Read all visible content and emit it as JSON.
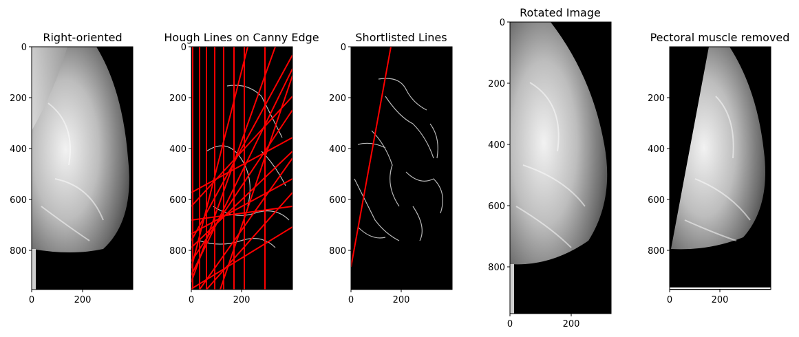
{
  "figure": {
    "panels": [
      {
        "id": "right-oriented",
        "title": "Right-oriented",
        "content": "mammogram",
        "y_ticks": [
          "0",
          "200",
          "400",
          "600",
          "800"
        ],
        "x_ticks": [
          "0",
          "200"
        ]
      },
      {
        "id": "hough-lines",
        "title": "Hough Lines on Canny Edge",
        "content": "edges-with-red-lines",
        "y_ticks": [
          "0",
          "200",
          "400",
          "600",
          "800"
        ],
        "x_ticks": [
          "0",
          "200"
        ]
      },
      {
        "id": "shortlisted-lines",
        "title": "Shortlisted Lines",
        "content": "edges-with-one-line",
        "y_ticks": [
          "0",
          "200",
          "400",
          "600",
          "800"
        ],
        "x_ticks": [
          "0",
          "200"
        ]
      },
      {
        "id": "rotated-image",
        "title": "Rotated Image",
        "content": "mammogram-rotated",
        "y_ticks": [
          "0",
          "200",
          "400",
          "600",
          "800"
        ],
        "x_ticks": [
          "0",
          "200"
        ]
      },
      {
        "id": "pectoral-removed",
        "title": "Pectoral muscle removed",
        "content": "mammogram-muscle-removed",
        "y_ticks": [
          "200",
          "400",
          "600",
          "800"
        ],
        "x_ticks": [
          "0",
          "200"
        ]
      }
    ],
    "colors": {
      "image_background": "#000000",
      "tissue": "#d8d8d8",
      "edge": "#b8b8b8",
      "hough_line": "#ff0000"
    }
  }
}
